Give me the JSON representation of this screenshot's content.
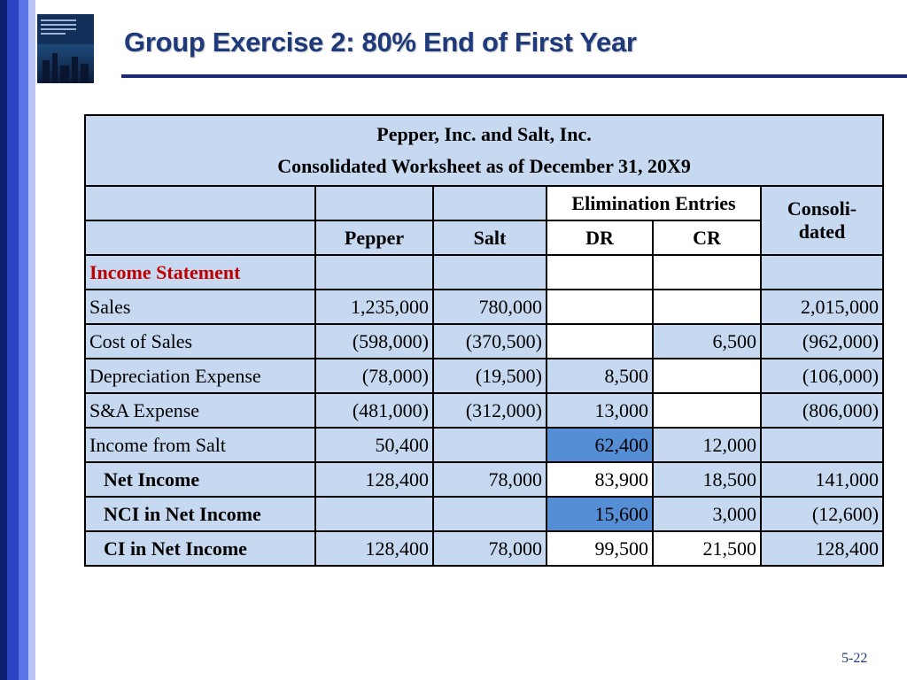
{
  "slide": {
    "title": "Group Exercise 2:  80% End of First Year",
    "page_number": "5-22"
  },
  "worksheet": {
    "company": "Pepper, Inc. and Salt, Inc.",
    "subtitle": "Consolidated Worksheet as of December 31, 20X9",
    "elimination_header": "Elimination Entries",
    "consolidated_header_1": "Consoli-",
    "consolidated_header_2": "dated",
    "col_pepper": "Pepper",
    "col_salt": "Salt",
    "col_dr": "DR",
    "col_cr": "CR",
    "section_label": "Income Statement",
    "rows": [
      {
        "label": "Sales",
        "pepper": "1,235,000",
        "salt": "780,000",
        "dr": "",
        "cr": "",
        "consolidated": "2,015,000"
      },
      {
        "label": "Cost of Sales",
        "pepper": "(598,000)",
        "salt": "(370,500)",
        "dr": "",
        "cr": "6,500",
        "consolidated": "(962,000)"
      },
      {
        "label": "Depreciation Expense",
        "pepper": "(78,000)",
        "salt": "(19,500)",
        "dr": "8,500",
        "cr": "",
        "consolidated": "(106,000)"
      },
      {
        "label": "S&A Expense",
        "pepper": "(481,000)",
        "salt": "(312,000)",
        "dr": "13,000",
        "cr": "",
        "consolidated": "(806,000)"
      },
      {
        "label": "Income from Salt",
        "pepper": "50,400",
        "salt": "",
        "dr": "62,400",
        "cr": "12,000",
        "consolidated": ""
      },
      {
        "label": "Net Income",
        "pepper": "128,400",
        "salt": "78,000",
        "dr": "83,900",
        "cr": "18,500",
        "consolidated": "141,000"
      },
      {
        "label": "NCI in Net Income",
        "pepper": "",
        "salt": "",
        "dr": "15,600",
        "cr": "3,000",
        "consolidated": "(12,600)"
      },
      {
        "label": "CI in Net Income",
        "pepper": "128,400",
        "salt": "78,000",
        "dr": "99,500",
        "cr": "21,500",
        "consolidated": "128,400"
      }
    ]
  },
  "colors": {
    "title": "#1f3a7a",
    "cell_light": "#c6d9f1",
    "cell_highlight": "#558ed5",
    "section_label": "#c00000"
  }
}
